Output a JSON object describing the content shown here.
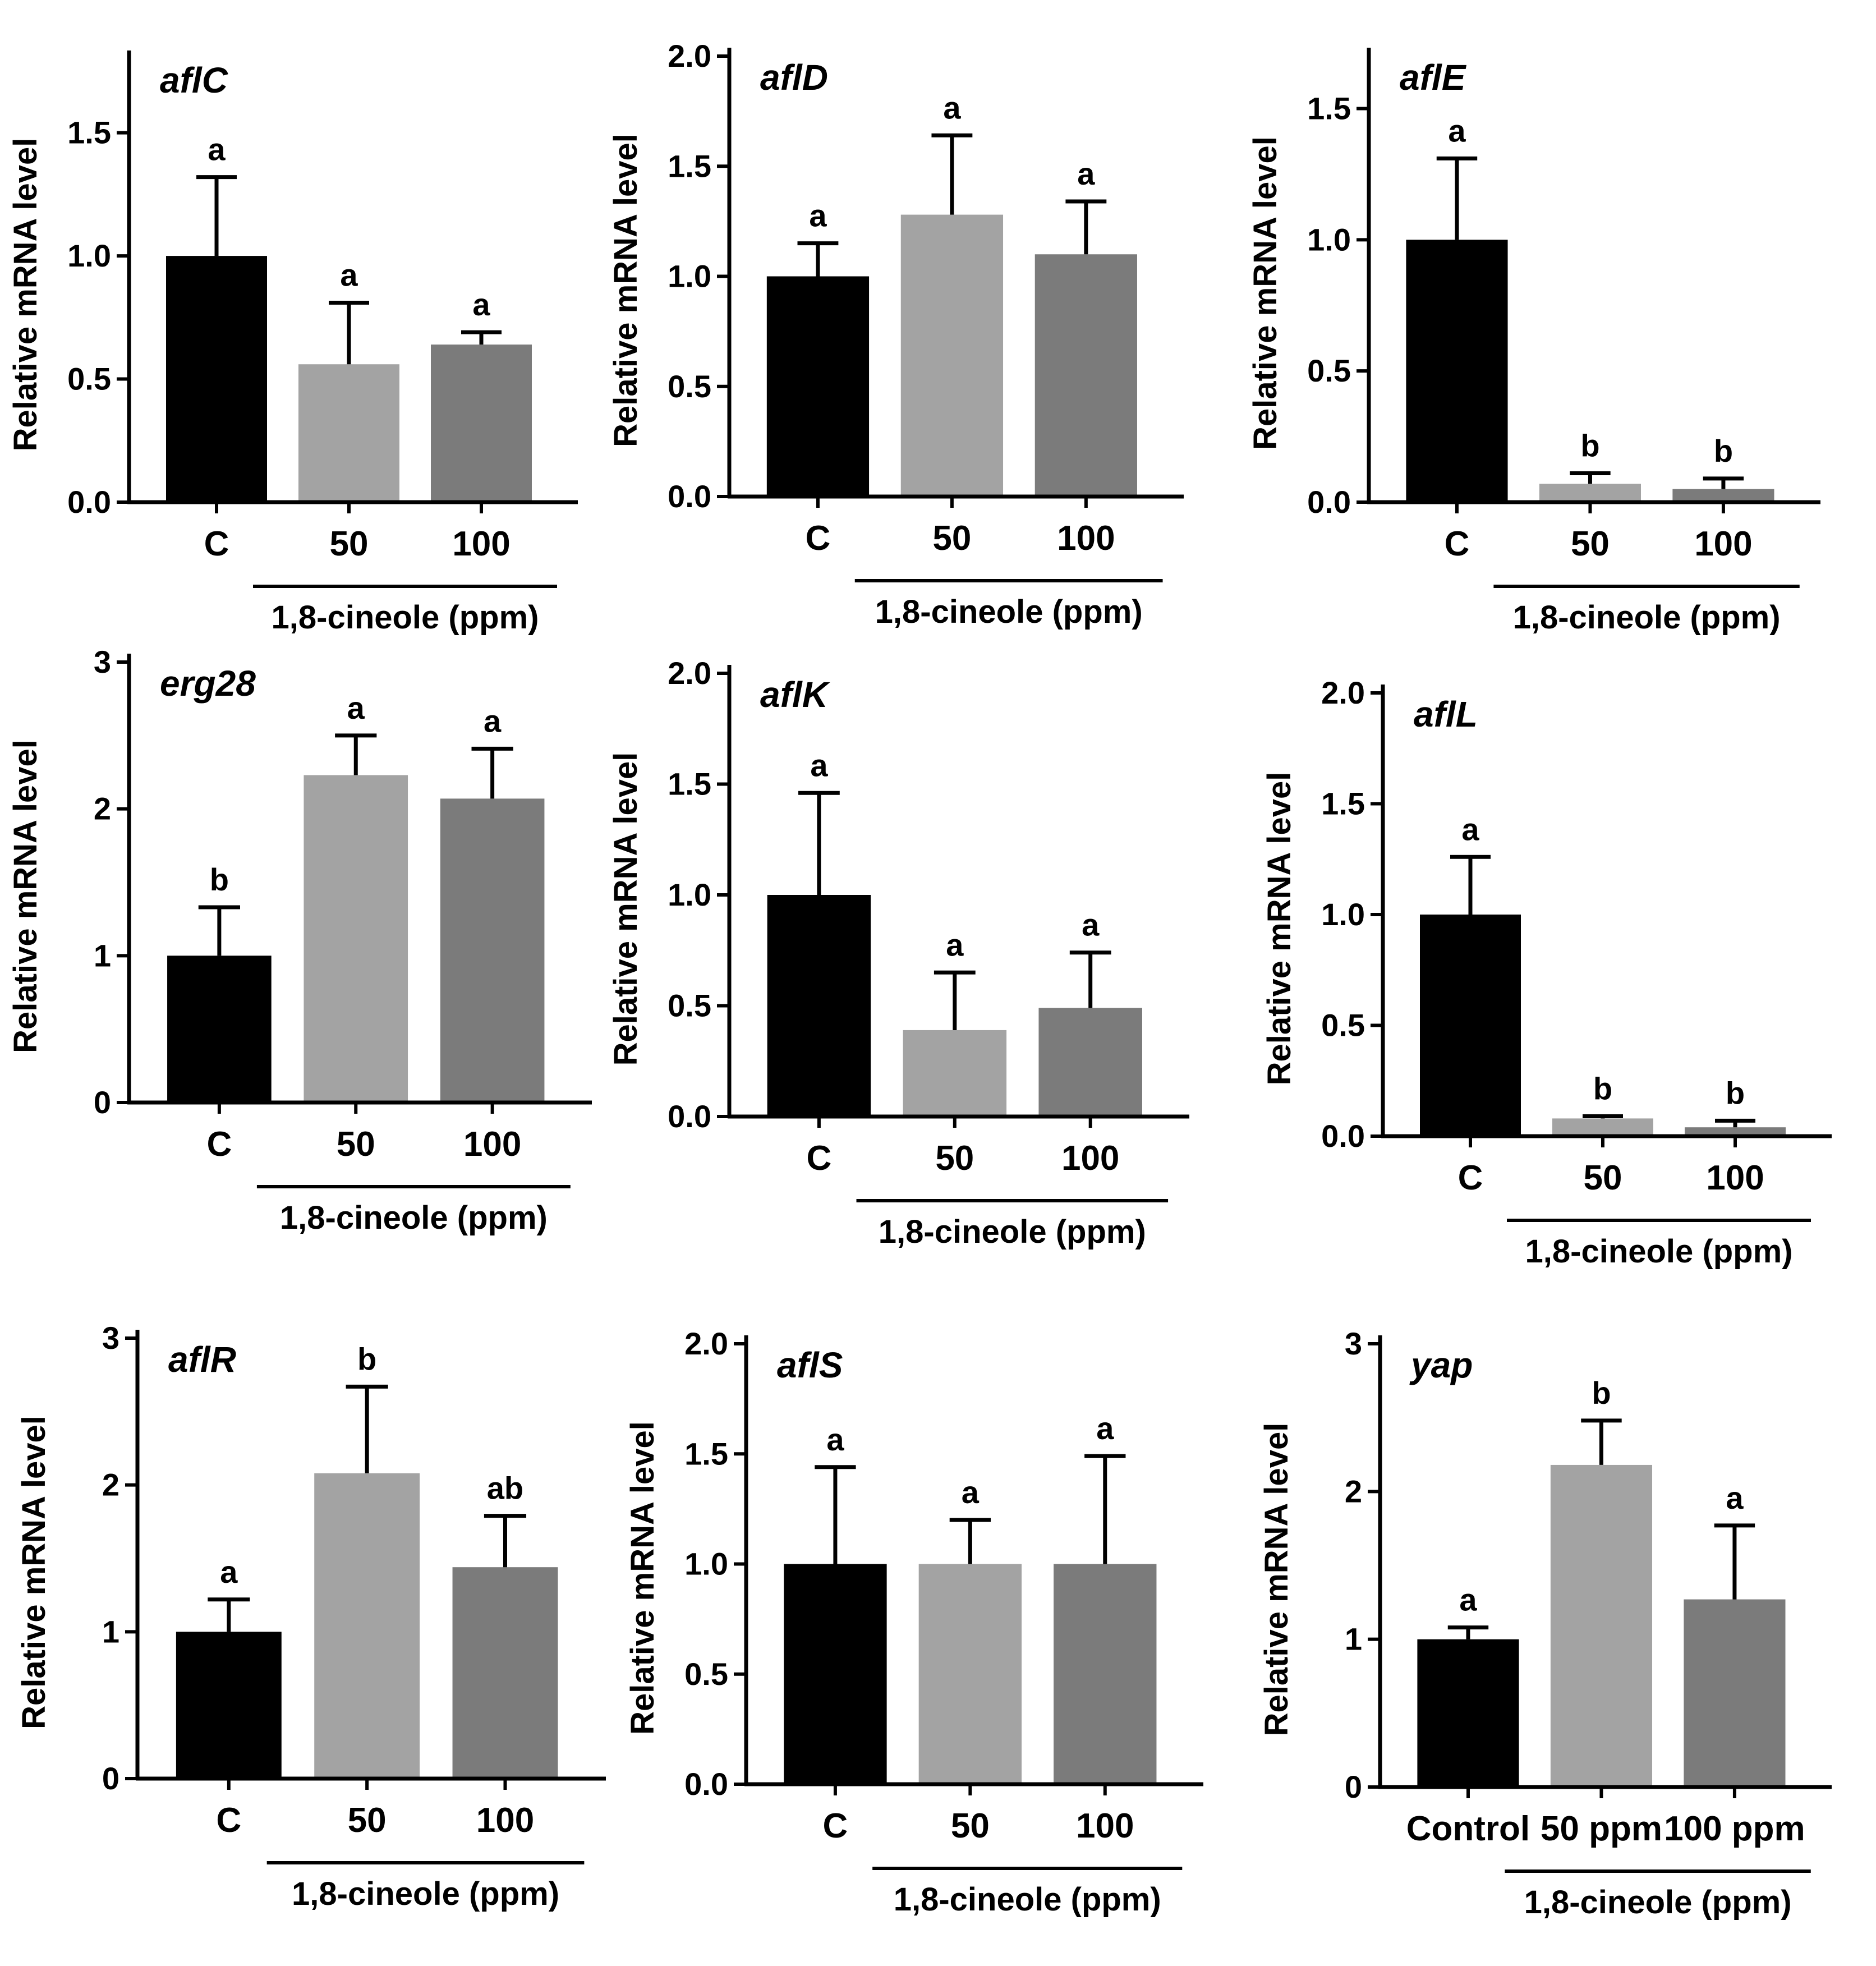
{
  "figure": {
    "bar_colors": [
      "#000000",
      "#a3a3a3",
      "#7b7b7b"
    ]
  },
  "chart_data": [
    {
      "type": "bar",
      "title": "aflC",
      "ylabel": "Relative mRNA level",
      "xlabel": "1,8-cineole (ppm)",
      "categories": [
        "C",
        "50",
        "100"
      ],
      "values": [
        1.0,
        0.56,
        0.64
      ],
      "errors": [
        0.32,
        0.25,
        0.05
      ],
      "letters": [
        "a",
        "a",
        "a"
      ],
      "ylim": [
        0,
        1.8
      ],
      "yticks": [
        "0.0",
        "0.5",
        "1.0",
        "1.5"
      ]
    },
    {
      "type": "bar",
      "title": "aflD",
      "ylabel": "Relative mRNA level",
      "xlabel": "1,8-cineole (ppm)",
      "categories": [
        "C",
        "50",
        "100"
      ],
      "values": [
        1.0,
        1.28,
        1.1
      ],
      "errors": [
        0.15,
        0.36,
        0.24
      ],
      "letters": [
        "a",
        "a",
        "a"
      ],
      "ylim": [
        0,
        2.0
      ],
      "yticks": [
        "0.0",
        "0.5",
        "1.0",
        "1.5",
        "2.0"
      ]
    },
    {
      "type": "bar",
      "title": "aflE",
      "ylabel": "Relative mRNA level",
      "xlabel": "1,8-cineole (ppm)",
      "categories": [
        "C",
        "50",
        "100"
      ],
      "values": [
        1.0,
        0.07,
        0.05
      ],
      "errors": [
        0.31,
        0.04,
        0.04
      ],
      "letters": [
        "a",
        "b",
        "b"
      ],
      "ylim": [
        0,
        1.7
      ],
      "yticks": [
        "0.0",
        "0.5",
        "1.0",
        "1.5"
      ]
    },
    {
      "type": "bar",
      "title": "erg28",
      "ylabel": "Relative mRNA level",
      "xlabel": "1,8-cineole (ppm)",
      "categories": [
        "C",
        "50",
        "100"
      ],
      "values": [
        1.0,
        2.23,
        2.07
      ],
      "errors": [
        0.33,
        0.27,
        0.34
      ],
      "letters": [
        "b",
        "a",
        "a"
      ],
      "ylim": [
        0,
        3
      ],
      "yticks": [
        "0",
        "1",
        "2",
        "3"
      ]
    },
    {
      "type": "bar",
      "title": "aflK",
      "ylabel": "Relative mRNA level",
      "xlabel": "1,8-cineole (ppm)",
      "categories": [
        "C",
        "50",
        "100"
      ],
      "values": [
        1.0,
        0.39,
        0.49
      ],
      "errors": [
        0.46,
        0.26,
        0.25
      ],
      "letters": [
        "a",
        "a",
        "a"
      ],
      "ylim": [
        0,
        2.0
      ],
      "yticks": [
        "0.0",
        "0.5",
        "1.0",
        "1.5",
        "2.0"
      ]
    },
    {
      "type": "bar",
      "title": "aflL",
      "ylabel": "Relative mRNA level",
      "xlabel": "1,8-cineole (ppm)",
      "categories": [
        "C",
        "50",
        "100"
      ],
      "values": [
        1.0,
        0.08,
        0.04
      ],
      "errors": [
        0.26,
        0.01,
        0.03
      ],
      "letters": [
        "a",
        "b",
        "b"
      ],
      "ylim": [
        0,
        2.0
      ],
      "yticks": [
        "0.0",
        "0.5",
        "1.0",
        "1.5",
        "2.0"
      ]
    },
    {
      "type": "bar",
      "title": "aflR",
      "ylabel": "Relative mRNA level",
      "xlabel": "1,8-cineole (ppm)",
      "categories": [
        "C",
        "50",
        "100"
      ],
      "values": [
        1.0,
        2.08,
        1.44
      ],
      "errors": [
        0.22,
        0.59,
        0.35
      ],
      "letters": [
        "a",
        "b",
        "ab"
      ],
      "ylim": [
        0,
        3
      ],
      "yticks": [
        "0",
        "1",
        "2",
        "3"
      ]
    },
    {
      "type": "bar",
      "title": "aflS",
      "ylabel": "Relative mRNA level",
      "xlabel": "1,8-cineole (ppm)",
      "categories": [
        "C",
        "50",
        "100"
      ],
      "values": [
        1.0,
        1.0,
        1.0
      ],
      "errors": [
        0.44,
        0.2,
        0.49
      ],
      "letters": [
        "a",
        "a",
        "a"
      ],
      "ylim": [
        0,
        2.0
      ],
      "yticks": [
        "0.0",
        "0.5",
        "1.0",
        "1.5",
        "2.0"
      ]
    },
    {
      "type": "bar",
      "title": "yap",
      "ylabel": "Relative mRNA level",
      "xlabel": "1,8-cineole (ppm)",
      "categories": [
        "Control",
        "50 ppm",
        "100 ppm"
      ],
      "values": [
        1.0,
        2.18,
        1.27
      ],
      "errors": [
        0.08,
        0.3,
        0.5
      ],
      "letters": [
        "a",
        "b",
        "a"
      ],
      "ylim": [
        0,
        3
      ],
      "yticks": [
        "0",
        "1",
        "2",
        "3"
      ]
    }
  ]
}
